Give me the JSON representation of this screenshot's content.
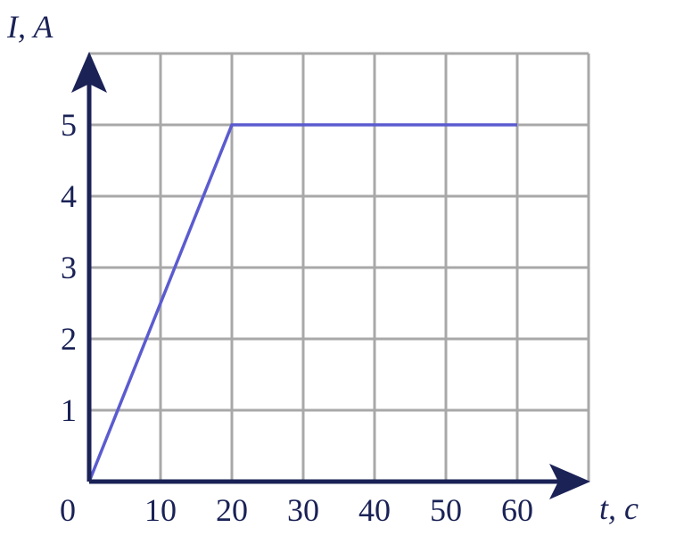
{
  "chart_data": {
    "type": "line",
    "x_label": "t,  c",
    "y_label": "I,  A",
    "x": [
      0,
      20,
      60
    ],
    "series": [
      {
        "color": "#5b5bd0",
        "values": [
          0,
          5,
          5
        ]
      }
    ],
    "xlim": [
      0,
      70
    ],
    "ylim": [
      0,
      6
    ],
    "xticks": [
      0,
      10,
      20,
      30,
      40,
      50,
      60
    ],
    "yticks": [
      1,
      2,
      3,
      4,
      5
    ],
    "grid": true
  }
}
